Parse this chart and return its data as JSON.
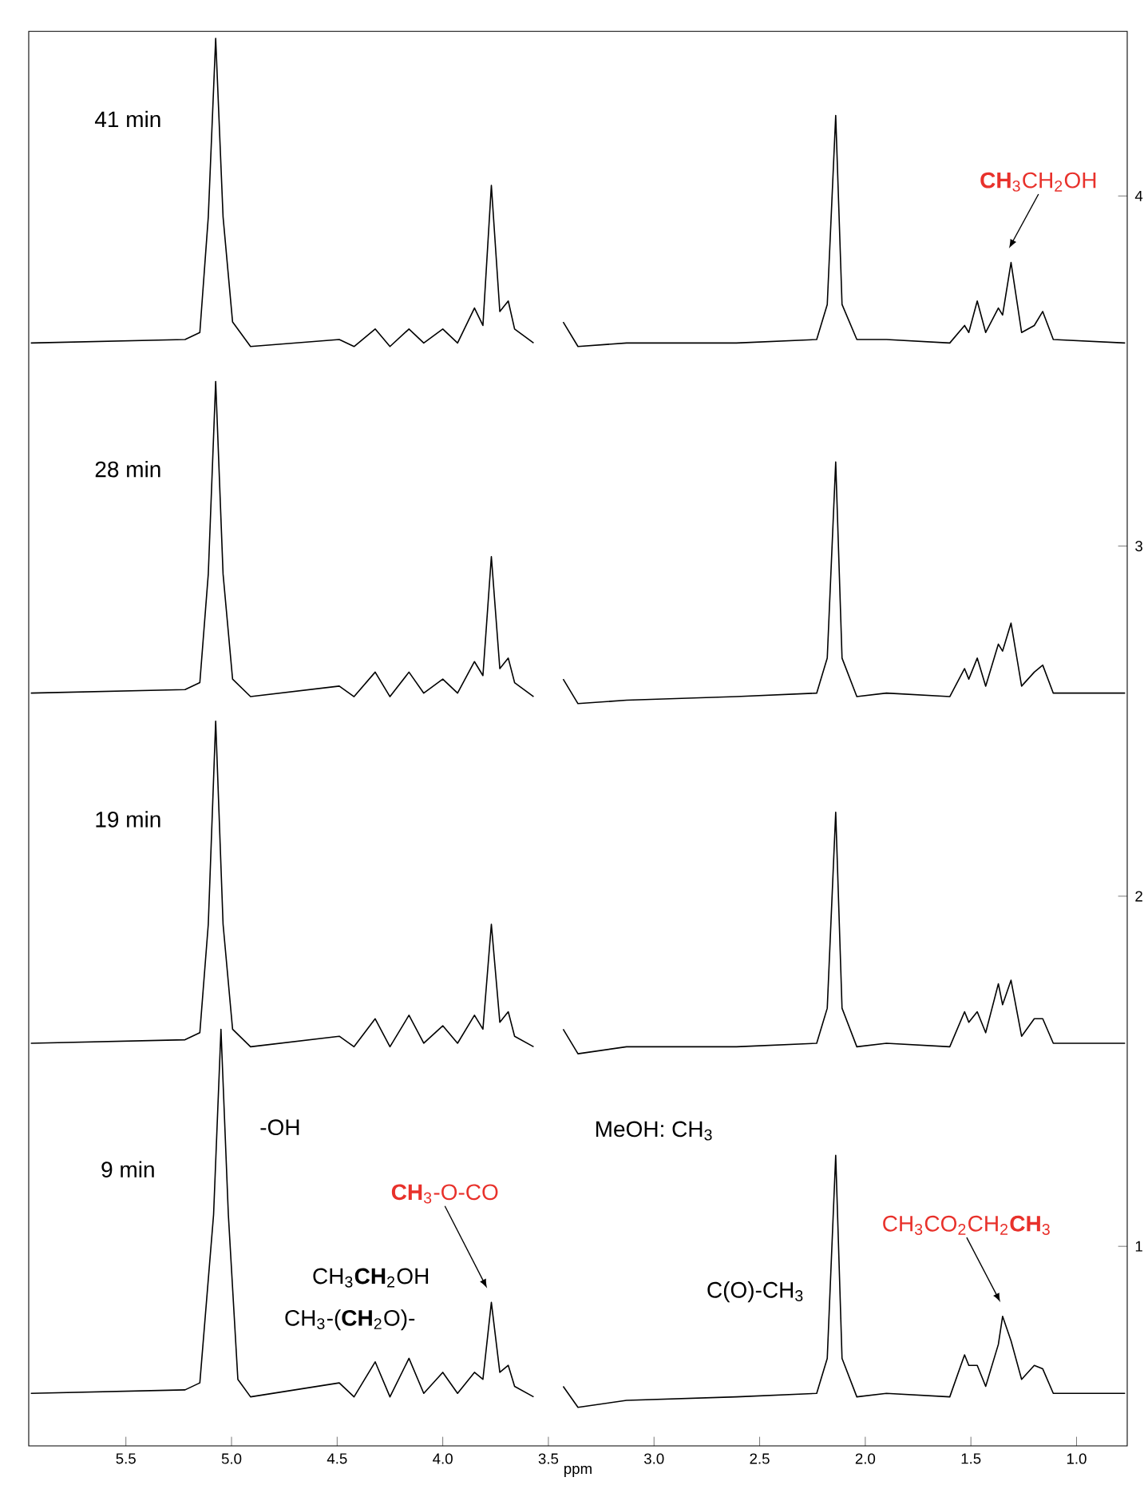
{
  "chart_data": {
    "type": "line",
    "xlabel": "ppm",
    "marker": "none",
    "line_style": "solid",
    "xlim": [
      5.96,
      0.76
    ],
    "ylim": [
      0.43,
      4.47
    ],
    "xticks": [
      5.5,
      {
        "value": 5.0,
        "label": "5.0"
      },
      4.5,
      {
        "value": 4.0,
        "label": "4.0"
      },
      3.5,
      {
        "value": 3.0,
        "label": "3.0"
      },
      2.5,
      {
        "value": 2.0,
        "label": "2.0"
      },
      1.5,
      {
        "value": 1.0,
        "label": "1.0"
      }
    ],
    "yticks": [
      1,
      2,
      3,
      4
    ],
    "series": [
      {
        "name": "41 min",
        "color": "#000000",
        "x": [
          5.95,
          5.22,
          5.15,
          5.11,
          5.075,
          5.04,
          4.995,
          4.91,
          4.49,
          4.42,
          4.32,
          4.25,
          4.16,
          4.09,
          4.0,
          3.93,
          3.85,
          3.81,
          3.77,
          3.73,
          3.69,
          3.66,
          3.57,
          3.52,
          3.495,
          3.47,
          3.43,
          3.36,
          3.13,
          2.61,
          2.23,
          2.18,
          2.14,
          2.11,
          2.04,
          1.9,
          1.6,
          1.53,
          1.51,
          1.47,
          1.43,
          1.37,
          1.35,
          1.31,
          1.26,
          1.2,
          1.16,
          1.11,
          0.77
        ],
        "values": [
          3.58,
          3.59,
          3.61,
          3.94,
          4.45,
          3.94,
          3.64,
          3.57,
          3.59,
          3.57,
          3.62,
          3.57,
          3.62,
          3.58,
          3.62,
          3.58,
          3.68,
          3.63,
          4.03,
          3.67,
          3.7,
          3.62,
          3.58,
          null,
          null,
          null,
          3.64,
          3.57,
          3.58,
          3.58,
          3.59,
          3.69,
          4.23,
          3.69,
          3.59,
          3.59,
          3.58,
          3.63,
          3.61,
          3.7,
          3.61,
          3.68,
          3.66,
          3.81,
          3.61,
          3.63,
          3.67,
          3.59,
          3.58
        ]
      },
      {
        "name": "28 min",
        "color": "#000000",
        "x": [
          5.95,
          5.22,
          5.15,
          5.11,
          5.075,
          5.04,
          4.995,
          4.91,
          4.49,
          4.42,
          4.32,
          4.25,
          4.16,
          4.09,
          4.0,
          3.93,
          3.85,
          3.81,
          3.77,
          3.73,
          3.69,
          3.66,
          3.57,
          3.52,
          3.495,
          3.47,
          3.43,
          3.36,
          3.13,
          2.61,
          2.23,
          2.18,
          2.14,
          2.11,
          2.04,
          1.9,
          1.6,
          1.53,
          1.51,
          1.47,
          1.43,
          1.37,
          1.35,
          1.31,
          1.26,
          1.2,
          1.16,
          1.11,
          0.77
        ],
        "values": [
          2.58,
          2.59,
          2.61,
          2.92,
          3.47,
          2.92,
          2.62,
          2.57,
          2.6,
          2.57,
          2.64,
          2.57,
          2.64,
          2.58,
          2.62,
          2.58,
          2.67,
          2.63,
          2.97,
          2.65,
          2.68,
          2.61,
          2.57,
          null,
          null,
          null,
          2.62,
          2.55,
          2.56,
          2.57,
          2.58,
          2.68,
          3.24,
          2.68,
          2.57,
          2.58,
          2.57,
          2.65,
          2.62,
          2.68,
          2.6,
          2.72,
          2.7,
          2.78,
          2.6,
          2.64,
          2.66,
          2.58,
          2.58
        ]
      },
      {
        "name": "19 min",
        "color": "#000000",
        "x": [
          5.95,
          5.22,
          5.15,
          5.11,
          5.075,
          5.04,
          4.995,
          4.91,
          4.49,
          4.42,
          4.32,
          4.25,
          4.16,
          4.09,
          4.0,
          3.93,
          3.85,
          3.81,
          3.77,
          3.73,
          3.69,
          3.66,
          3.57,
          3.52,
          3.495,
          3.47,
          3.43,
          3.36,
          3.13,
          2.61,
          2.23,
          2.18,
          2.14,
          2.11,
          2.04,
          1.9,
          1.6,
          1.53,
          1.51,
          1.47,
          1.43,
          1.37,
          1.35,
          1.31,
          1.26,
          1.2,
          1.16,
          1.11,
          0.77
        ],
        "values": [
          1.58,
          1.59,
          1.61,
          1.92,
          2.5,
          1.92,
          1.62,
          1.57,
          1.6,
          1.57,
          1.65,
          1.57,
          1.66,
          1.58,
          1.63,
          1.58,
          1.66,
          1.62,
          1.92,
          1.64,
          1.67,
          1.6,
          1.57,
          null,
          null,
          null,
          1.62,
          1.55,
          1.57,
          1.57,
          1.58,
          1.68,
          2.24,
          1.68,
          1.57,
          1.58,
          1.57,
          1.67,
          1.64,
          1.67,
          1.61,
          1.75,
          1.69,
          1.76,
          1.6,
          1.65,
          1.65,
          1.58,
          1.58
        ]
      },
      {
        "name": "9 min",
        "color": "#000000",
        "x": [
          5.95,
          5.22,
          5.15,
          5.085,
          5.05,
          5.015,
          4.97,
          4.91,
          4.49,
          4.42,
          4.32,
          4.25,
          4.16,
          4.09,
          4.0,
          3.93,
          3.85,
          3.81,
          3.77,
          3.73,
          3.69,
          3.66,
          3.57,
          3.52,
          3.495,
          3.47,
          3.43,
          3.36,
          3.13,
          2.61,
          2.23,
          2.18,
          2.14,
          2.11,
          2.04,
          1.9,
          1.6,
          1.53,
          1.51,
          1.47,
          1.43,
          1.37,
          1.35,
          1.31,
          1.26,
          1.2,
          1.16,
          1.11,
          0.77
        ],
        "values": [
          0.58,
          0.59,
          0.61,
          1.09,
          1.62,
          1.09,
          0.62,
          0.57,
          0.61,
          0.57,
          0.67,
          0.57,
          0.68,
          0.58,
          0.64,
          0.58,
          0.64,
          0.62,
          0.84,
          0.64,
          0.66,
          0.6,
          0.57,
          null,
          null,
          null,
          0.6,
          0.54,
          0.56,
          0.57,
          0.58,
          0.68,
          1.26,
          0.68,
          0.57,
          0.58,
          0.57,
          0.69,
          0.66,
          0.66,
          0.6,
          0.72,
          0.8,
          0.73,
          0.62,
          0.66,
          0.65,
          0.58,
          0.58
        ]
      }
    ],
    "annotations": [
      "-OH",
      "MeOH: CH$_{3}$",
      "CH$_{3}$**CH**$_{2}$OH",
      "CH$_{3}$-(**CH**$_{2}$O)-",
      "C(O)-CH$_{3}$",
      "**CH**$_{3}$-O-CO",
      "CH$_{3}$CO$_{2}$CH$_{2}$**CH**$_{3}$",
      "**CH**$_{3}$CH$_{2}$OH"
    ]
  }
}
